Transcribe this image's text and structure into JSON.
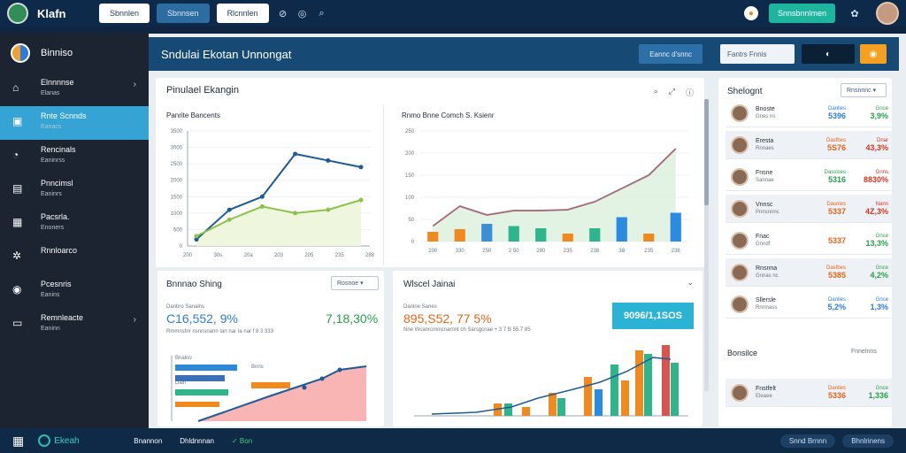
{
  "topbar": {
    "logo_text": "",
    "brand": "Klafn",
    "buttons": [
      "Sbnnlen",
      "Sbnnsen",
      "Rlcnnlen"
    ],
    "icons": [
      "link-icon",
      "eye-icon",
      "search-icon"
    ],
    "cta": "Snnsbnnlmen",
    "colors": {
      "bg": "#0d2a4a",
      "cta": "#1eb59e"
    }
  },
  "sidebar": {
    "title": "Binniso",
    "items": [
      {
        "label": "Elnnnnse",
        "sub": "Elanas",
        "icon": "home-icon",
        "chevron": true
      },
      {
        "label": "Rnte Scnnds",
        "sub": "Eanacs",
        "icon": "dashboard-icon",
        "active": true
      },
      {
        "label": "Rencinals",
        "sub": "Eaninrss",
        "icon": "chart-icon"
      },
      {
        "label": "Pnncimsl",
        "sub": "Eaninrs",
        "icon": "report-icon"
      },
      {
        "label": "Pacsrla.",
        "sub": "Enoners",
        "icon": "grid-icon"
      },
      {
        "label": "Rnnloarco",
        "sub": "",
        "icon": "settings-icon"
      },
      {
        "label": "Pcesnris",
        "sub": "Eanins",
        "icon": "user-icon"
      },
      {
        "label": "Remnleacte",
        "sub": "Eaninn",
        "icon": "folder-icon",
        "chevron": true
      }
    ]
  },
  "main": {
    "title": "Sndulai Ekotan Unnongat",
    "header_btn": "Eannc d'snnc",
    "header_input": "Fantrs Fnnis"
  },
  "cards": {
    "top_left": {
      "title": "Pinulael Ekangin",
      "subtitle": "Panrite Bancents",
      "tools": [
        "search-icon",
        "expand-icon",
        "info-icon"
      ]
    },
    "top_mid": {
      "subtitle": "Rnmo Bnne Comch S. Ksienr"
    },
    "bottom_left": {
      "title": "Bnnnao Shing",
      "dropdown": "Rosnoe",
      "subtitle": "Danbro Sanalns",
      "stat1": "C16,552, 9%",
      "stat2": "7,18,30%",
      "caption": "Rmmnsfnr nsnnsnann Ian nar Ia nar f 8 3 333",
      "legend_items": [
        "Bnalno",
        "Bnns",
        "Daln"
      ]
    },
    "bottom_mid": {
      "title": "Wlscel Jainai",
      "subtitle": "Danlne Sanes",
      "stat1": "895,S52, 77 5%",
      "stat2": "9096/1,1SOS",
      "caption": "Nne Wcanrcmnicnarnnt ch Sarsgcnae + 3 7 B 55.7 85"
    },
    "right": {
      "title": "Shelognt",
      "dropdown": "Rnsnnnc",
      "footer": "Bonsilce",
      "footer_right": "Fnnelnns"
    }
  },
  "chart_data": [
    {
      "type": "line",
      "x": [
        1,
        2,
        3,
        4,
        5,
        6
      ],
      "series": [
        {
          "values": [
            200,
            1100,
            1500,
            2800,
            2600,
            2400
          ],
          "color": "#1e5a96"
        },
        {
          "values": [
            300,
            800,
            1200,
            1000,
            1100,
            1400
          ],
          "color": "#8bc34a"
        }
      ],
      "ylim": [
        0,
        3500
      ],
      "yticks": [
        "0",
        "500",
        "1000",
        "1500",
        "2000",
        "2500",
        "3000",
        "3500"
      ],
      "xticks": [
        "200",
        "30s",
        "20a",
        "203",
        "205",
        "235",
        "288"
      ]
    },
    {
      "type": "bar",
      "x": [
        1,
        2,
        3,
        4,
        5,
        6,
        7,
        8,
        9,
        10
      ],
      "series": [
        {
          "values": [
            22,
            28,
            40,
            35,
            30,
            18,
            30,
            55,
            18,
            65
          ],
          "color": "mixed"
        }
      ],
      "line": [
        35,
        80,
        60,
        70,
        70,
        72,
        90,
        120,
        150,
        210
      ],
      "ylim": [
        0,
        250
      ],
      "yticks": [
        "0",
        "50",
        "100",
        "150",
        "200",
        "250"
      ],
      "xticks": [
        "200",
        "330",
        "250",
        "2 50",
        "280",
        "235",
        "238",
        "38",
        "235",
        "238"
      ]
    }
  ],
  "list": [
    {
      "name": "Bnoste",
      "sub": "Gnes ns",
      "top1": "Danlles",
      "val1": "5396",
      "top2": "Gnce",
      "val2": "3,9%",
      "c1": "#2e7cd6",
      "c2": "#27a04a"
    },
    {
      "name": "Eresta",
      "sub": "Rnnaes",
      "top1": "Dasfbes",
      "val1": "5S76",
      "top2": "Dnar",
      "val2": "43,3%",
      "c1": "#e8641a",
      "c2": "#d5361f"
    },
    {
      "name": "Fnsne",
      "sub": "Sannae",
      "top1": "Dasslses",
      "val1": "5316",
      "top2": "Gnns",
      "val2": "8830%",
      "c1": "#27a04a",
      "c2": "#d5361f"
    },
    {
      "name": "Vnnsc",
      "sub": "Pnnsnnnc",
      "top1": "Dasnles",
      "val1": "5337",
      "top2": "Nann",
      "val2": "4Z,3%",
      "c1": "#e8641a",
      "c2": "#d5361f"
    },
    {
      "name": "Fnac",
      "sub": "Gnndf",
      "top1": "",
      "val1": "5337",
      "top2": "Gnce",
      "val2": "13,3%",
      "c1": "#e8641a",
      "c2": "#27a04a"
    },
    {
      "name": "Rnsnna",
      "sub": "Gnnas nc",
      "top1": "Dasfbes",
      "val1": "5385",
      "top2": "Gnce",
      "val2": "4,2%",
      "c1": "#e8641a",
      "c2": "#27a04a"
    },
    {
      "name": "Sllersle",
      "sub": "Rnrrnass",
      "top1": "Danlles",
      "val1": "5,2%",
      "top2": "Gnce",
      "val2": "1,3%",
      "c1": "#2e7cd6",
      "c2": "#2e7cd6"
    },
    {
      "name": "Fnstfelt",
      "sub": "Eleaee",
      "top1": "Danlles",
      "val1": "5336",
      "top2": "Gnce",
      "val2": "1,336",
      "c1": "#e8641a",
      "c2": "#27a04a"
    }
  ],
  "bottombar": {
    "brand": "Ekeah",
    "links": [
      "Bnannon",
      "Dhldnnnan",
      "Bon"
    ],
    "pills": [
      "Snnd Brnnn",
      "Bhnlrinens"
    ]
  }
}
